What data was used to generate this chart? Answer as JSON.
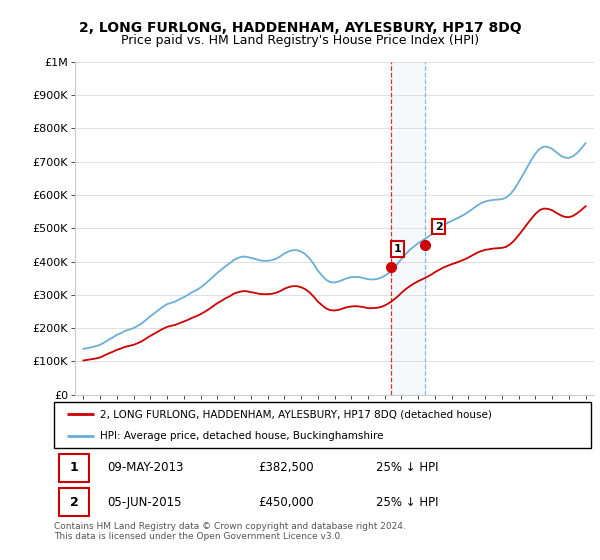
{
  "title": "2, LONG FURLONG, HADDENHAM, AYLESBURY, HP17 8DQ",
  "subtitle": "Price paid vs. HM Land Registry's House Price Index (HPI)",
  "background_color": "#ffffff",
  "grid_color": "#e0e0e0",
  "hpi_color": "#6baed6",
  "property_color": "#cc0000",
  "ylim": [
    0,
    1000000
  ],
  "yticks": [
    0,
    100000,
    200000,
    300000,
    400000,
    500000,
    600000,
    700000,
    800000,
    900000,
    1000000
  ],
  "ytick_labels": [
    "£0",
    "£100K",
    "£200K",
    "£300K",
    "£400K",
    "£500K",
    "£600K",
    "£700K",
    "£800K",
    "£900K",
    "£1M"
  ],
  "xlim_start": 1994.5,
  "xlim_end": 2025.5,
  "transaction1_x": 2013.36,
  "transaction1_y": 382500,
  "transaction2_x": 2015.42,
  "transaction2_y": 450000,
  "legend_property": "2, LONG FURLONG, HADDENHAM, AYLESBURY, HP17 8DQ (detached house)",
  "legend_hpi": "HPI: Average price, detached house, Buckinghamshire",
  "annotation1": [
    "1",
    "09-MAY-2013",
    "£382,500",
    "25% ↓ HPI"
  ],
  "annotation2": [
    "2",
    "05-JUN-2015",
    "£450,000",
    "25% ↓ HPI"
  ],
  "footer": "Contains HM Land Registry data © Crown copyright and database right 2024.\nThis data is licensed under the Open Government Licence v3.0.",
  "hpi_x": [
    1995,
    1995.25,
    1995.5,
    1995.75,
    1996,
    1996.25,
    1996.5,
    1996.75,
    1997,
    1997.25,
    1997.5,
    1997.75,
    1998,
    1998.25,
    1998.5,
    1998.75,
    1999,
    1999.25,
    1999.5,
    1999.75,
    2000,
    2000.25,
    2000.5,
    2000.75,
    2001,
    2001.25,
    2001.5,
    2001.75,
    2002,
    2002.25,
    2002.5,
    2002.75,
    2003,
    2003.25,
    2003.5,
    2003.75,
    2004,
    2004.25,
    2004.5,
    2004.75,
    2005,
    2005.25,
    2005.5,
    2005.75,
    2006,
    2006.25,
    2006.5,
    2006.75,
    2007,
    2007.25,
    2007.5,
    2007.75,
    2008,
    2008.25,
    2008.5,
    2008.75,
    2009,
    2009.25,
    2009.5,
    2009.75,
    2010,
    2010.25,
    2010.5,
    2010.75,
    2011,
    2011.25,
    2011.5,
    2011.75,
    2012,
    2012.25,
    2012.5,
    2012.75,
    2013,
    2013.25,
    2013.5,
    2013.75,
    2014,
    2014.25,
    2014.5,
    2014.75,
    2015,
    2015.25,
    2015.5,
    2015.75,
    2016,
    2016.25,
    2016.5,
    2016.75,
    2017,
    2017.25,
    2017.5,
    2017.75,
    2018,
    2018.25,
    2018.5,
    2018.75,
    2019,
    2019.25,
    2019.5,
    2019.75,
    2020,
    2020.25,
    2020.5,
    2020.75,
    2021,
    2021.25,
    2021.5,
    2021.75,
    2022,
    2022.25,
    2022.5,
    2022.75,
    2023,
    2023.25,
    2023.5,
    2023.75,
    2024,
    2024.25,
    2024.5,
    2024.75,
    2025
  ],
  "hpi_y": [
    138000,
    140000,
    143000,
    146000,
    150000,
    157000,
    165000,
    172000,
    180000,
    185000,
    192000,
    196000,
    200000,
    207000,
    215000,
    225000,
    236000,
    245000,
    255000,
    264000,
    272000,
    276000,
    280000,
    287000,
    293000,
    300000,
    308000,
    314000,
    322000,
    332000,
    343000,
    354000,
    366000,
    376000,
    386000,
    395000,
    405000,
    411000,
    415000,
    414000,
    411000,
    408000,
    404000,
    402000,
    402000,
    404000,
    408000,
    415000,
    424000,
    430000,
    434000,
    434000,
    430000,
    422000,
    410000,
    393000,
    373000,
    358000,
    345000,
    338000,
    337000,
    340000,
    345000,
    350000,
    353000,
    354000,
    353000,
    350000,
    347000,
    346000,
    347000,
    351000,
    357000,
    366000,
    378000,
    392000,
    408000,
    422000,
    435000,
    445000,
    455000,
    463000,
    471000,
    480000,
    490000,
    500000,
    509000,
    516000,
    522000,
    528000,
    534000,
    541000,
    549000,
    558000,
    567000,
    575000,
    580000,
    583000,
    585000,
    586000,
    587000,
    592000,
    602000,
    618000,
    638000,
    660000,
    682000,
    704000,
    724000,
    738000,
    745000,
    744000,
    738000,
    728000,
    718000,
    712000,
    711000,
    716000,
    726000,
    740000,
    755000
  ],
  "prop_x": [
    1995,
    1995.25,
    1995.5,
    1995.75,
    1996,
    1996.25,
    1996.5,
    1996.75,
    1997,
    1997.25,
    1997.5,
    1997.75,
    1998,
    1998.25,
    1998.5,
    1998.75,
    1999,
    1999.25,
    1999.5,
    1999.75,
    2000,
    2000.25,
    2000.5,
    2000.75,
    2001,
    2001.25,
    2001.5,
    2001.75,
    2002,
    2002.25,
    2002.5,
    2002.75,
    2003,
    2003.25,
    2003.5,
    2003.75,
    2004,
    2004.25,
    2004.5,
    2004.75,
    2005,
    2005.25,
    2005.5,
    2005.75,
    2006,
    2006.25,
    2006.5,
    2006.75,
    2007,
    2007.25,
    2007.5,
    2007.75,
    2008,
    2008.25,
    2008.5,
    2008.75,
    2009,
    2009.25,
    2009.5,
    2009.75,
    2010,
    2010.25,
    2010.5,
    2010.75,
    2011,
    2011.25,
    2011.5,
    2011.75,
    2012,
    2012.25,
    2012.5,
    2012.75,
    2013,
    2013.25,
    2013.5,
    2013.75,
    2014,
    2014.25,
    2014.5,
    2014.75,
    2015,
    2015.25,
    2015.5,
    2015.75,
    2016,
    2016.25,
    2016.5,
    2016.75,
    2017,
    2017.25,
    2017.5,
    2017.75,
    2018,
    2018.25,
    2018.5,
    2018.75,
    2019,
    2019.25,
    2019.5,
    2019.75,
    2020,
    2020.25,
    2020.5,
    2020.75,
    2021,
    2021.25,
    2021.5,
    2021.75,
    2022,
    2022.25,
    2022.5,
    2022.75,
    2023,
    2023.25,
    2023.5,
    2023.75,
    2024,
    2024.25,
    2024.5,
    2024.75,
    2025
  ],
  "prop_y": [
    103000,
    105000,
    107000,
    109000,
    112000,
    118000,
    124000,
    129000,
    135000,
    139000,
    144000,
    147000,
    150000,
    155000,
    161000,
    169000,
    177000,
    184000,
    191000,
    198000,
    204000,
    207000,
    210000,
    215000,
    220000,
    225000,
    231000,
    236000,
    242000,
    249000,
    257000,
    266000,
    275000,
    282000,
    290000,
    296000,
    304000,
    308000,
    311000,
    311000,
    308000,
    306000,
    303000,
    302000,
    302000,
    303000,
    306000,
    311000,
    318000,
    323000,
    326000,
    326000,
    323000,
    317000,
    308000,
    295000,
    280000,
    269000,
    259000,
    254000,
    253000,
    255000,
    259000,
    263000,
    265000,
    266000,
    265000,
    263000,
    260000,
    260000,
    261000,
    263000,
    268000,
    275000,
    284000,
    294000,
    306000,
    317000,
    326000,
    334000,
    341000,
    347000,
    353000,
    360000,
    368000,
    375000,
    382000,
    387000,
    392000,
    396000,
    401000,
    406000,
    412000,
    419000,
    426000,
    431000,
    435000,
    437000,
    439000,
    440000,
    441000,
    444000,
    452000,
    464000,
    479000,
    495000,
    512000,
    528000,
    543000,
    554000,
    559000,
    558000,
    554000,
    546000,
    539000,
    534000,
    533000,
    537000,
    545000,
    555000,
    566000
  ],
  "title_fontsize": 10,
  "subtitle_fontsize": 9
}
